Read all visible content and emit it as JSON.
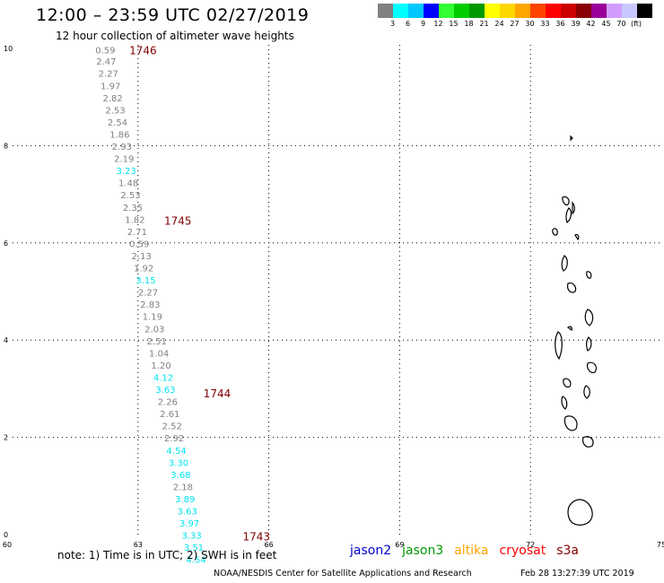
{
  "header": {
    "title": "12:00 – 23:59 UTC 02/27/2019",
    "subtitle": "12 hour collection of altimeter wave heights"
  },
  "color_scale": {
    "colors": [
      "#808080",
      "#00ffff",
      "#00c8ff",
      "#0000ff",
      "#33ff33",
      "#00cc00",
      "#009900",
      "#ffff00",
      "#ffd700",
      "#ffa500",
      "#ff4500",
      "#ff0000",
      "#cc0000",
      "#8b0000",
      "#990099",
      "#d29cff",
      "#c8c8ff",
      "#000000"
    ],
    "labels": [
      "3",
      "6",
      "9",
      "12",
      "15",
      "18",
      "21",
      "24",
      "27",
      "30",
      "33",
      "36",
      "39",
      "42",
      "45",
      "70"
    ],
    "unit": "(ft)"
  },
  "axes": {
    "x_ticks": [
      "60",
      "63",
      "66",
      "69",
      "72",
      "75"
    ],
    "y_ticks": [
      "0",
      "2",
      "4",
      "6",
      "8",
      "10"
    ]
  },
  "passes": [
    {
      "label": "1746",
      "lon": 62.8,
      "lat": 9.95
    },
    {
      "label": "1745",
      "lon": 63.6,
      "lat": 6.45
    },
    {
      "label": "1744",
      "lon": 64.5,
      "lat": 2.9
    },
    {
      "label": "1743",
      "lon": 65.4,
      "lat": -0.05
    }
  ],
  "track": [
    {
      "v": "0.59",
      "lon": 62.25,
      "lat": 9.95,
      "c": "#808080"
    },
    {
      "v": "2.47",
      "lon": 62.27,
      "lat": 9.72,
      "c": "#808080"
    },
    {
      "v": "2.27",
      "lon": 62.32,
      "lat": 9.47,
      "c": "#808080"
    },
    {
      "v": "1.97",
      "lon": 62.37,
      "lat": 9.22,
      "c": "#808080"
    },
    {
      "v": "2.82",
      "lon": 62.42,
      "lat": 8.97,
      "c": "#808080"
    },
    {
      "v": "2.53",
      "lon": 62.48,
      "lat": 8.72,
      "c": "#808080"
    },
    {
      "v": "2.54",
      "lon": 62.53,
      "lat": 8.47,
      "c": "#808080"
    },
    {
      "v": "1.86",
      "lon": 62.58,
      "lat": 8.22,
      "c": "#808080"
    },
    {
      "v": "2.93",
      "lon": 62.63,
      "lat": 7.97,
      "c": "#808080"
    },
    {
      "v": "2.19",
      "lon": 62.68,
      "lat": 7.72,
      "c": "#808080"
    },
    {
      "v": "3.23",
      "lon": 62.73,
      "lat": 7.47,
      "c": "#00e5ee"
    },
    {
      "v": "1.48",
      "lon": 62.78,
      "lat": 7.22,
      "c": "#808080"
    },
    {
      "v": "2.53",
      "lon": 62.83,
      "lat": 6.97,
      "c": "#808080"
    },
    {
      "v": "2.35",
      "lon": 62.88,
      "lat": 6.72,
      "c": "#808080"
    },
    {
      "v": "1.82",
      "lon": 62.93,
      "lat": 6.47,
      "c": "#808080"
    },
    {
      "v": "2.71",
      "lon": 62.98,
      "lat": 6.22,
      "c": "#808080"
    },
    {
      "v": "0.59",
      "lon": 63.03,
      "lat": 5.97,
      "c": "#808080"
    },
    {
      "v": "2.13",
      "lon": 63.08,
      "lat": 5.72,
      "c": "#808080"
    },
    {
      "v": "1.92",
      "lon": 63.13,
      "lat": 5.47,
      "c": "#808080"
    },
    {
      "v": "3.15",
      "lon": 63.18,
      "lat": 5.22,
      "c": "#00e5ee"
    },
    {
      "v": "2.27",
      "lon": 63.23,
      "lat": 4.97,
      "c": "#808080"
    },
    {
      "v": "2.83",
      "lon": 63.28,
      "lat": 4.72,
      "c": "#808080"
    },
    {
      "v": "1.19",
      "lon": 63.33,
      "lat": 4.47,
      "c": "#808080"
    },
    {
      "v": "2.03",
      "lon": 63.38,
      "lat": 4.22,
      "c": "#808080"
    },
    {
      "v": "2.51",
      "lon": 63.43,
      "lat": 3.97,
      "c": "#808080"
    },
    {
      "v": "1.04",
      "lon": 63.48,
      "lat": 3.72,
      "c": "#808080"
    },
    {
      "v": "1.20",
      "lon": 63.53,
      "lat": 3.47,
      "c": "#808080"
    },
    {
      "v": "4.12",
      "lon": 63.58,
      "lat": 3.22,
      "c": "#00e5ee"
    },
    {
      "v": "3.63",
      "lon": 63.63,
      "lat": 2.97,
      "c": "#00e5ee"
    },
    {
      "v": "2.26",
      "lon": 63.68,
      "lat": 2.72,
      "c": "#808080"
    },
    {
      "v": "2.61",
      "lon": 63.73,
      "lat": 2.47,
      "c": "#808080"
    },
    {
      "v": "2.52",
      "lon": 63.78,
      "lat": 2.22,
      "c": "#808080"
    },
    {
      "v": "2.92",
      "lon": 63.83,
      "lat": 1.97,
      "c": "#808080"
    },
    {
      "v": "4.54",
      "lon": 63.88,
      "lat": 1.72,
      "c": "#00e5ee"
    },
    {
      "v": "3.30",
      "lon": 63.93,
      "lat": 1.47,
      "c": "#00e5ee"
    },
    {
      "v": "3.68",
      "lon": 63.98,
      "lat": 1.22,
      "c": "#00e5ee"
    },
    {
      "v": "2.18",
      "lon": 64.03,
      "lat": 0.97,
      "c": "#808080"
    },
    {
      "v": "3.89",
      "lon": 64.08,
      "lat": 0.72,
      "c": "#00e5ee"
    },
    {
      "v": "3.63",
      "lon": 64.13,
      "lat": 0.47,
      "c": "#00e5ee"
    },
    {
      "v": "3.97",
      "lon": 64.18,
      "lat": 0.22,
      "c": "#00e5ee"
    },
    {
      "v": "3.33",
      "lon": 64.23,
      "lat": -0.03,
      "c": "#00e5ee"
    },
    {
      "v": "3.51",
      "lon": 64.28,
      "lat": -0.28,
      "c": "#00e5ee"
    },
    {
      "v": "4.54",
      "lon": 64.33,
      "lat": -0.53,
      "c": "#00e5ee"
    }
  ],
  "footer": {
    "note": "note: 1) Time is in UTC; 2) SWH is in feet",
    "satellites": [
      {
        "name": "jason2",
        "color": "#0000cc"
      },
      {
        "name": "jason3",
        "color": "#009900"
      },
      {
        "name": "altika",
        "color": "#ffa500"
      },
      {
        "name": "cryosat",
        "color": "#ff0000"
      },
      {
        "name": "s3a",
        "color": "#800000"
      }
    ],
    "credit": "NOAA/NESDIS Center for Satellite Applications and Research",
    "timestamp": "Feb 28 13:27:39 UTC 2019"
  }
}
